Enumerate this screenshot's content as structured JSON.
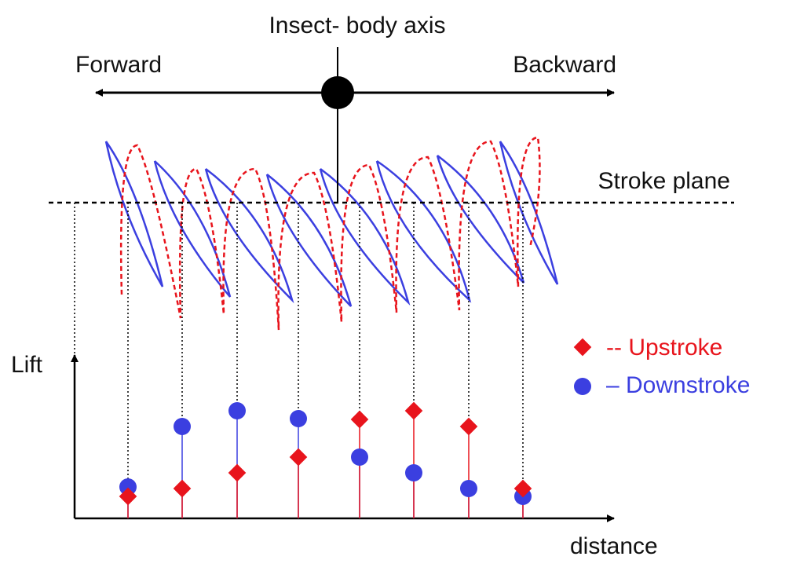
{
  "title": "Insect- body axis",
  "labels": {
    "forward": "Forward",
    "backward": "Backward",
    "stroke_plane": "Stroke plane",
    "y_axis": "Lift",
    "x_axis": "distance"
  },
  "legend": [
    {
      "name": "-- Upstroke",
      "color": "#e8141c"
    },
    {
      "name": "– Downstroke",
      "color": "#3b3fe0"
    }
  ],
  "lift": {
    "upstroke": [
      2.8,
      3.8,
      5.8,
      7.8,
      12.6,
      13.7,
      11.7,
      3.8
    ],
    "downstroke": [
      4,
      11.7,
      13.7,
      12.7,
      7.8,
      5.8,
      3.8,
      2.8
    ]
  }
}
